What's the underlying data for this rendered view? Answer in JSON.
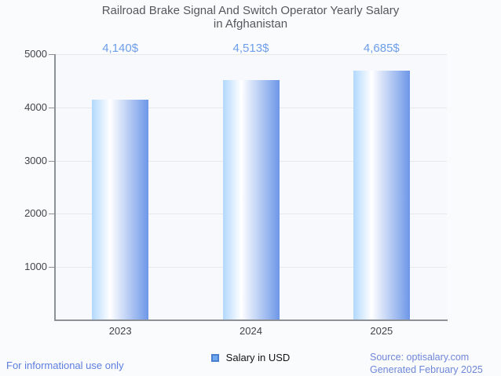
{
  "page": {
    "background": "#fafbfd",
    "footer_left": "For informational use only",
    "source_line1": "Source: optisalary.com",
    "source_line2": "Generated February 2025"
  },
  "chart_data": {
    "type": "bar",
    "title": "Railroad Brake Signal And Switch Operator Yearly Salary in Afghanistan",
    "title_lines": [
      "Railroad Brake Signal And Switch Operator Yearly Salary",
      "in Afghanistan"
    ],
    "categories": [
      "2023",
      "2024",
      "2025"
    ],
    "series": [
      {
        "name": "Salary in USD",
        "values": [
          4140,
          4513,
          4685
        ]
      }
    ],
    "value_labels": [
      "4,140$",
      "4,513$",
      "4,685$"
    ],
    "xlabel": "",
    "ylabel": "",
    "ylim": [
      0,
      5000
    ],
    "yticks": [
      1000,
      2000,
      3000,
      4000,
      5000
    ],
    "grid": true,
    "legend_position": "bottom-center",
    "colors": {
      "bar_gradient_left": "#b2d8fd",
      "bar_gradient_mid": "#ffffff",
      "bar_gradient_right": "#6d97e8",
      "value_label": "#6d9eeb",
      "legend_marker_fill": "#6fa8f0",
      "legend_marker_border": "#4a7fd0",
      "grid": "#e6e8ea",
      "axis": "#8d9198",
      "tick_label": "#404347",
      "title": "#55575b"
    }
  }
}
